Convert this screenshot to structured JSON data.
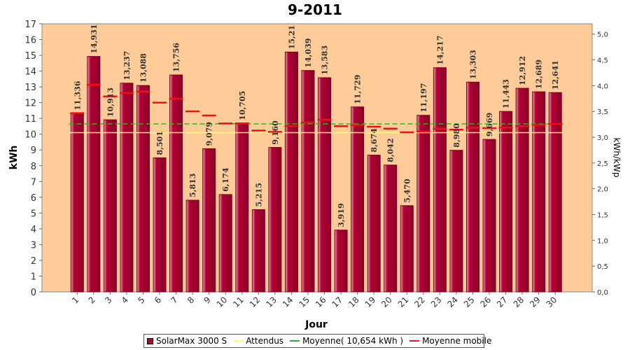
{
  "chart_data": {
    "type": "bar",
    "title": "9-2011",
    "xlabel": "Jour",
    "ylabel": "kWh",
    "y2label": "kWh/kWp",
    "ylim": [
      0,
      17
    ],
    "y2lim": [
      0,
      5.2
    ],
    "yticks": [
      "0",
      "1",
      "2",
      "3",
      "4",
      "5",
      "6",
      "7",
      "8",
      "9",
      "10",
      "11",
      "12",
      "13",
      "14",
      "15",
      "16",
      "17"
    ],
    "y2ticks": [
      "0,0",
      "0,5",
      "1,0",
      "1,5",
      "2,0",
      "2,5",
      "3,0",
      "3,5",
      "4,0",
      "4,5",
      "5,0"
    ],
    "categories": [
      "1",
      "2",
      "3",
      "4",
      "5",
      "6",
      "7",
      "8",
      "9",
      "10",
      "11",
      "12",
      "13",
      "14",
      "15",
      "16",
      "17",
      "18",
      "19",
      "20",
      "21",
      "22",
      "23",
      "24",
      "25",
      "26",
      "27",
      "28",
      "29",
      "30"
    ],
    "series": [
      {
        "name": "SolarMax 3000 S",
        "values": [
          11.336,
          14.931,
          10.913,
          13.237,
          13.088,
          8.501,
          13.756,
          5.813,
          9.079,
          6.174,
          10.705,
          5.215,
          9.16,
          15.21,
          14.039,
          13.583,
          3.919,
          11.729,
          8.674,
          8.042,
          5.47,
          11.197,
          14.217,
          8.98,
          13.303,
          9.669,
          11.443,
          12.912,
          12.689,
          12.641
        ],
        "labels": [
          "11,336",
          "14,931",
          "10,913",
          "13,237",
          "13,088",
          "8,501",
          "13,756",
          "5,813",
          "9,079",
          "6,174",
          "10,705",
          "5,215",
          "9,160",
          "15,21",
          "14,039",
          "13,583",
          "3,919",
          "11,729",
          "8,674",
          "8,042",
          "5,470",
          "11,197",
          "14,217",
          "8,980",
          "13,303",
          "9,669",
          "11,443",
          "12,912",
          "12,689",
          "12,641"
        ]
      },
      {
        "name": "Attendus",
        "value": 10.1
      },
      {
        "name": "Moyenne( 10,654 kWh )",
        "value": 10.654
      },
      {
        "name": "Moyenne mobile",
        "values": [
          11.336,
          13.134,
          12.393,
          12.604,
          12.701,
          12.001,
          12.252,
          11.447,
          11.184,
          10.683,
          10.685,
          10.229,
          10.148,
          10.509,
          10.744,
          10.921,
          10.509,
          10.576,
          10.476,
          10.353,
          10.12,
          10.168,
          10.344,
          10.287,
          10.407,
          10.379,
          10.418,
          10.507,
          10.586,
          10.654
        ]
      }
    ],
    "colors": {
      "bar": "#b30033",
      "bar_border": "#7a0022",
      "attendus": "#ffff66",
      "moyenne": "#22bb22",
      "mobile": "#ee1111",
      "plot_bg": "#ffcc99"
    },
    "legend": "bottom",
    "grid": false
  }
}
